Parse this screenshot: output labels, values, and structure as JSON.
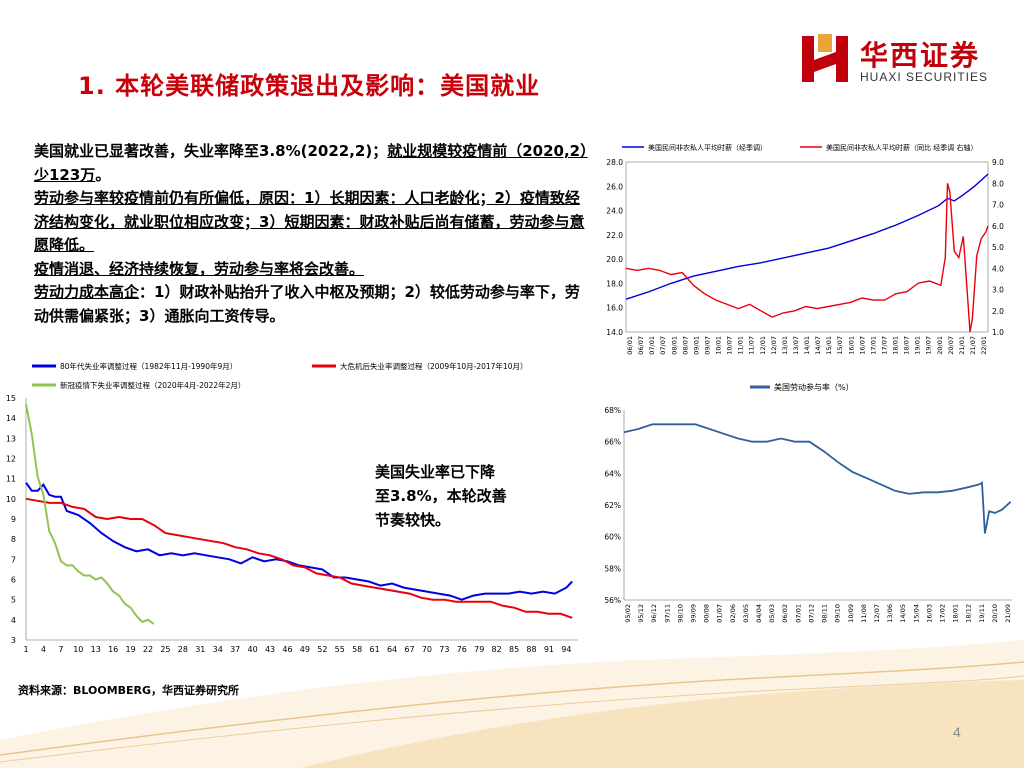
{
  "header": {
    "title": "1. 本轮美联储政策退出及影响：美国就业",
    "logo_cn": "华西证券",
    "logo_en": "HUAXI SECURITIES"
  },
  "text": {
    "p1a": "美国就业已显著改善，失业率降至3.8%(2022,2)；",
    "p1b": "就业规模较疫情前（2020,2）少123万",
    "p1c": "。",
    "p2": "劳动参与率较疫情前仍有所偏低，原因：1）长期因素：人口老龄化；2）疫情致经济结构变化，就业职位相应改变；3）短期因素：财政补贴后尚有储蓄，劳动参与意愿降低。",
    "p3": "疫情消退、经济持续恢复，劳动参与率将会改善。",
    "p4a": "劳动力成本高企",
    "p4b": "：1）财政补贴抬升了收入中枢及预期；2）较低劳动参与率下，劳动供需偏紧张；3）通胀向工资传导。"
  },
  "annotation": {
    "line1": "美国失业率已下降",
    "line2": "至3.8%，本轮改善",
    "line3": "节奏较快。"
  },
  "source": "资料来源：BLOOMBERG，华西证券研究所",
  "page_number": "4",
  "colors": {
    "red": "#e8000b",
    "blue": "#0000e0",
    "green": "#92c353",
    "title_red": "#c8000a",
    "lfpr_blue": "#2f5f9c"
  },
  "chart_data": [
    {
      "id": "earnings",
      "type": "line",
      "series": [
        {
          "name": "美国民间非农私人平均时薪（经季调）",
          "axis": "left",
          "color": "#0000e0",
          "x": [
            2006.0,
            2007.0,
            2008.0,
            2009.0,
            2010.0,
            2011.0,
            2012.0,
            2013.0,
            2014.0,
            2015.0,
            2016.0,
            2017.0,
            2018.0,
            2019.0,
            2019.9,
            2020.3,
            2020.6,
            2021.0,
            2021.5,
            2022.1
          ],
          "values": [
            16.7,
            17.3,
            18.0,
            18.6,
            19.0,
            19.4,
            19.7,
            20.1,
            20.5,
            20.9,
            21.5,
            22.1,
            22.8,
            23.6,
            24.4,
            25.0,
            24.8,
            25.3,
            26.0,
            27.0
          ]
        },
        {
          "name": "美国民间非农私人平均时薪（同比 经季调 右轴）",
          "axis": "right",
          "color": "#e8000b",
          "x": [
            2006.0,
            2006.5,
            2007.0,
            2007.5,
            2008.0,
            2008.5,
            2009.0,
            2009.5,
            2010.0,
            2010.5,
            2011.0,
            2011.5,
            2012.0,
            2012.5,
            2013.0,
            2013.5,
            2014.0,
            2014.5,
            2015.0,
            2015.5,
            2016.0,
            2016.5,
            2017.0,
            2017.5,
            2018.0,
            2018.5,
            2019.0,
            2019.5,
            2020.0,
            2020.2,
            2020.3,
            2020.4,
            2020.6,
            2020.8,
            2021.0,
            2021.2,
            2021.3,
            2021.4,
            2021.6,
            2021.8,
            2022.0,
            2022.1
          ],
          "values": [
            4.0,
            3.9,
            4.0,
            3.9,
            3.7,
            3.8,
            3.2,
            2.8,
            2.5,
            2.3,
            2.1,
            2.3,
            2.0,
            1.7,
            1.9,
            2.0,
            2.2,
            2.1,
            2.2,
            2.3,
            2.4,
            2.6,
            2.5,
            2.5,
            2.8,
            2.9,
            3.3,
            3.4,
            3.2,
            4.5,
            8.0,
            7.6,
            4.8,
            4.5,
            5.5,
            2.5,
            1.0,
            1.6,
            4.6,
            5.4,
            5.7,
            6.0
          ]
        }
      ],
      "ylim_left": [
        14.0,
        28.0
      ],
      "ylim_right": [
        1.0,
        9.0
      ],
      "left_ticks": [
        "28.0",
        "26.0",
        "24.0",
        "22.0",
        "20.0",
        "18.0",
        "16.0",
        "14.0"
      ],
      "right_ticks": [
        "9.0",
        "8.0",
        "7.0",
        "6.0",
        "5.0",
        "4.0",
        "3.0",
        "2.0",
        "1.0"
      ],
      "x_ticks": [
        "06/01",
        "06/07",
        "07/01",
        "07/07",
        "08/01",
        "08/07",
        "09/01",
        "09/07",
        "10/01",
        "10/07",
        "11/01",
        "11/07",
        "12/01",
        "12/07",
        "13/01",
        "13/07",
        "14/01",
        "14/07",
        "15/01",
        "15/07",
        "16/01",
        "16/07",
        "17/01",
        "17/07",
        "18/01",
        "18/07",
        "19/01",
        "19/07",
        "20/01",
        "20/07",
        "21/01",
        "21/07",
        "22/01"
      ],
      "xlim": [
        2006.0,
        2022.1
      ]
    },
    {
      "id": "lfpr",
      "type": "line",
      "series": [
        {
          "name": "美国劳动参与率（%）",
          "color": "#2f5f9c",
          "x": [
            1995.0,
            1996.0,
            1997.0,
            1998.0,
            1999.0,
            2000.0,
            2001.0,
            2002.0,
            2003.0,
            2004.0,
            2005.0,
            2006.0,
            2007.0,
            2008.0,
            2009.0,
            2010.0,
            2011.0,
            2012.0,
            2013.0,
            2014.0,
            2015.0,
            2016.0,
            2017.0,
            2018.0,
            2019.0,
            2019.9,
            2020.1,
            2020.3,
            2020.6,
            2021.0,
            2021.5,
            2022.1
          ],
          "values": [
            66.6,
            66.8,
            67.1,
            67.1,
            67.1,
            67.1,
            66.8,
            66.5,
            66.2,
            66.0,
            66.0,
            66.2,
            66.0,
            66.0,
            65.4,
            64.7,
            64.1,
            63.7,
            63.3,
            62.9,
            62.7,
            62.8,
            62.8,
            62.9,
            63.1,
            63.3,
            63.4,
            60.2,
            61.6,
            61.5,
            61.7,
            62.2
          ]
        }
      ],
      "ylim": [
        56.0,
        68.0
      ],
      "y_ticks": [
        "68%",
        "66%",
        "64%",
        "62%",
        "60%",
        "58%",
        "56%"
      ],
      "x_ticks": [
        "95/02",
        "95/12",
        "96/12",
        "97/11",
        "98/10",
        "99/09",
        "00/08",
        "01/07",
        "02/06",
        "03/05",
        "04/04",
        "05/03",
        "06/02",
        "07/01",
        "07/12",
        "08/11",
        "09/10",
        "10/09",
        "11/08",
        "12/07",
        "13/06",
        "14/05",
        "15/04",
        "16/03",
        "17/02",
        "18/01",
        "18/12",
        "19/11",
        "20/10",
        "21/09"
      ],
      "xlim": [
        1995.0,
        2022.2
      ]
    },
    {
      "id": "unemployment",
      "type": "line",
      "xlim": [
        1,
        96
      ],
      "ylim": [
        3,
        15
      ],
      "y_ticks": [
        "15",
        "14",
        "13",
        "12",
        "11",
        "10",
        "9",
        "8",
        "7",
        "6",
        "5",
        "4",
        "3"
      ],
      "x_ticks": [
        "1",
        "4",
        "7",
        "10",
        "13",
        "16",
        "19",
        "22",
        "25",
        "28",
        "31",
        "34",
        "37",
        "40",
        "43",
        "46",
        "49",
        "52",
        "55",
        "58",
        "61",
        "64",
        "67",
        "70",
        "73",
        "76",
        "79",
        "82",
        "85",
        "88",
        "91",
        "94"
      ],
      "series": [
        {
          "name": "80年代失业率调整过程（1982年11月-1990年9月）",
          "color": "#0000e0",
          "x": [
            1,
            2,
            3,
            4,
            5,
            6,
            7,
            8,
            10,
            12,
            14,
            16,
            18,
            20,
            22,
            24,
            26,
            28,
            30,
            32,
            34,
            36,
            38,
            40,
            42,
            44,
            46,
            48,
            50,
            52,
            54,
            56,
            58,
            60,
            62,
            64,
            66,
            68,
            70,
            72,
            74,
            76,
            78,
            80,
            82,
            84,
            86,
            88,
            90,
            92,
            94,
            95
          ],
          "values": [
            10.8,
            10.4,
            10.4,
            10.7,
            10.2,
            10.1,
            10.1,
            9.4,
            9.2,
            8.8,
            8.3,
            7.9,
            7.6,
            7.4,
            7.5,
            7.2,
            7.3,
            7.2,
            7.3,
            7.2,
            7.1,
            7.0,
            6.8,
            7.1,
            6.9,
            7.0,
            6.9,
            6.7,
            6.6,
            6.5,
            6.1,
            6.1,
            6.0,
            5.9,
            5.7,
            5.8,
            5.6,
            5.5,
            5.4,
            5.3,
            5.2,
            5.0,
            5.2,
            5.3,
            5.3,
            5.3,
            5.4,
            5.3,
            5.4,
            5.3,
            5.6,
            5.9
          ]
        },
        {
          "name": "大危机后失业率调整过程（2009年10月-2017年10月）",
          "color": "#e8000b",
          "x": [
            1,
            3,
            5,
            7,
            9,
            11,
            13,
            15,
            17,
            19,
            21,
            23,
            25,
            27,
            29,
            31,
            33,
            35,
            37,
            39,
            41,
            43,
            45,
            47,
            49,
            51,
            53,
            55,
            57,
            59,
            61,
            63,
            65,
            67,
            69,
            71,
            73,
            75,
            77,
            79,
            81,
            83,
            85,
            87,
            89,
            91,
            93,
            95
          ],
          "values": [
            10.0,
            9.9,
            9.8,
            9.8,
            9.6,
            9.5,
            9.1,
            9.0,
            9.1,
            9.0,
            9.0,
            8.7,
            8.3,
            8.2,
            8.1,
            8.0,
            7.9,
            7.8,
            7.6,
            7.5,
            7.3,
            7.2,
            7.0,
            6.7,
            6.6,
            6.3,
            6.2,
            6.1,
            5.8,
            5.7,
            5.6,
            5.5,
            5.4,
            5.3,
            5.1,
            5.0,
            5.0,
            4.9,
            4.9,
            4.9,
            4.9,
            4.7,
            4.6,
            4.4,
            4.4,
            4.3,
            4.3,
            4.1
          ]
        },
        {
          "name": "新冠疫情下失业率调整过程（2020年4月-2022年2月）",
          "color": "#92c353",
          "x": [
            1,
            2,
            3,
            4,
            5,
            6,
            7,
            8,
            9,
            10,
            11,
            12,
            13,
            14,
            15,
            16,
            17,
            18,
            19,
            20,
            21,
            22,
            23
          ],
          "values": [
            14.7,
            13.2,
            11.1,
            10.2,
            8.4,
            7.8,
            6.9,
            6.7,
            6.7,
            6.4,
            6.2,
            6.2,
            6.0,
            6.1,
            5.8,
            5.4,
            5.2,
            4.8,
            4.6,
            4.2,
            3.9,
            4.0,
            3.8
          ]
        }
      ]
    }
  ]
}
